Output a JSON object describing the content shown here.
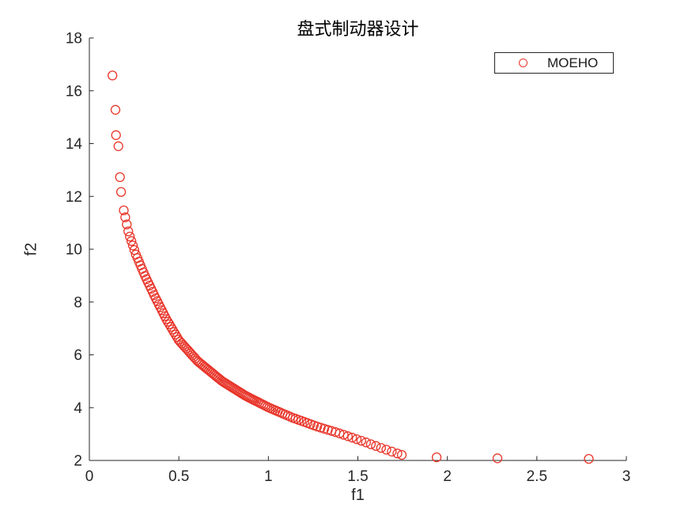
{
  "window": {
    "background": "#ffffff"
  },
  "title": {
    "text": "盘式制动器设计",
    "color": "#000000"
  },
  "axes": {
    "xlabel": "f1",
    "ylabel": "f2",
    "xlim": [
      0,
      3
    ],
    "ylim": [
      2,
      18
    ],
    "xtick_labels": [
      "0",
      "0.5",
      "1",
      "1.5",
      "2",
      "2.5",
      "3"
    ],
    "xtick_values": [
      0,
      0.5,
      1,
      1.5,
      2,
      2.5,
      3
    ],
    "ytick_labels": [
      "2",
      "4",
      "6",
      "8",
      "10",
      "12",
      "14",
      "16",
      "18"
    ],
    "ytick_values": [
      2,
      4,
      6,
      8,
      10,
      12,
      14,
      16,
      18
    ],
    "axis_color": "#262626",
    "tick_label_color": "#262626",
    "tick_direction": "in",
    "box": false,
    "grid": false
  },
  "legend": {
    "label": "MOEHO",
    "marker": "open-circle",
    "marker_color": "#e8352a",
    "border_color": "#262626",
    "background": "#ffffff",
    "position": "top-right"
  },
  "marker_style": {
    "radius": 5.5,
    "stroke_width": 1.3
  },
  "chart_data": {
    "type": "scatter",
    "title": "盘式制动器设计",
    "xlabel": "f1",
    "ylabel": "f2",
    "xlim": [
      0,
      3
    ],
    "ylim": [
      2,
      18
    ],
    "grid": false,
    "legend_position": "top-right",
    "series": [
      {
        "name": "MOEHO",
        "marker": "open-circle",
        "color": "#e8352a",
        "description": "Pareto front of disc brake design problem: dense convex front from (0.13,16.6) to (1.75,2.2) plus sparse tail points",
        "head_points": [
          [
            0.129,
            16.58
          ],
          [
            0.146,
            15.28
          ],
          [
            0.149,
            14.32
          ],
          [
            0.162,
            13.9
          ],
          [
            0.171,
            12.73
          ],
          [
            0.177,
            12.17
          ]
        ],
        "front_curve_points": [
          [
            0.183,
            11.75
          ],
          [
            0.22,
            10.6
          ],
          [
            0.26,
            9.8
          ],
          [
            0.31,
            9.0
          ],
          [
            0.37,
            8.15
          ],
          [
            0.43,
            7.35
          ],
          [
            0.5,
            6.55
          ],
          [
            0.605,
            5.76
          ],
          [
            0.74,
            5.01
          ],
          [
            0.87,
            4.46
          ],
          [
            1.0,
            4.01
          ],
          [
            1.135,
            3.62
          ],
          [
            1.27,
            3.29
          ],
          [
            1.4,
            3.02
          ],
          [
            1.53,
            2.72
          ],
          [
            1.64,
            2.45
          ],
          [
            1.745,
            2.21
          ]
        ],
        "tail_points": [
          [
            1.94,
            2.12
          ],
          [
            2.28,
            2.08
          ],
          [
            2.79,
            2.06
          ]
        ],
        "front_sampling": {
          "f1_start": 0.192,
          "f1_end": 1.745,
          "base_step": 0.0085,
          "ramp_start_f1": 0.9,
          "end_step": 0.033
        }
      }
    ]
  }
}
